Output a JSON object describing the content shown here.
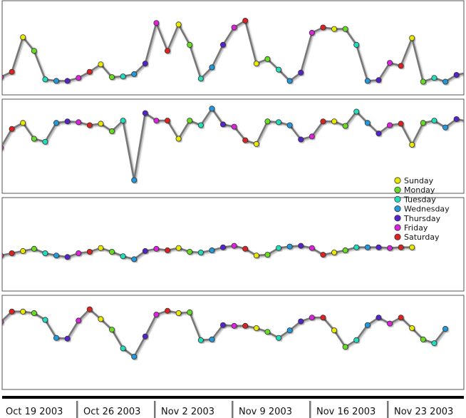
{
  "chart_data": {
    "type": "line",
    "x_tick_labels": [
      "Oct 19 2003",
      "Oct 26 2003",
      "Nov 2 2003",
      "Nov 9 2003",
      "Nov 16 2003",
      "Nov 23 2003"
    ],
    "legend": {
      "placement": "right, inside second panel",
      "entries": [
        {
          "label": "Sunday",
          "color": "#e8e800"
        },
        {
          "label": "Monday",
          "color": "#66dd22"
        },
        {
          "label": "Tuesday",
          "color": "#22ddbb"
        },
        {
          "label": "Wednesday",
          "color": "#2299dd"
        },
        {
          "label": "Thursday",
          "color": "#5522cc"
        },
        {
          "label": "Friday",
          "color": "#dd22dd"
        },
        {
          "label": "Saturday",
          "color": "#dd2222"
        }
      ]
    },
    "start_weekday": "Friday",
    "grid": false,
    "line_color": "#777777",
    "panels": [
      {
        "values": [
          16,
          23,
          69,
          51,
          13,
          11,
          11,
          15,
          23,
          33,
          16,
          17,
          20,
          34,
          88,
          51,
          86,
          59,
          14,
          29,
          59,
          82,
          91,
          34,
          40,
          26,
          11,
          22,
          75,
          82,
          80,
          80,
          59,
          11,
          12,
          35,
          31,
          68,
          10,
          15,
          10,
          19,
          22
        ]
      },
      {
        "values": [
          53,
          78,
          86,
          65,
          61,
          86,
          88,
          87,
          83,
          85,
          75,
          89,
          10,
          99,
          89,
          89,
          65,
          89,
          83,
          105,
          84,
          81,
          63,
          58,
          88,
          87,
          83,
          64,
          68,
          88,
          88,
          82,
          101,
          86,
          72,
          83,
          85,
          57,
          86,
          89,
          80,
          91,
          88
        ]
      },
      {
        "values": [
          40,
          43,
          46,
          49,
          43,
          40,
          38,
          43,
          45,
          50,
          45,
          39,
          35,
          46,
          49,
          47,
          50,
          45,
          44,
          47,
          51,
          53,
          49,
          40,
          41,
          50,
          52,
          53,
          50,
          41,
          44,
          47,
          51,
          51,
          51,
          50,
          51,
          51
        ]
      },
      {
        "values": [
          82,
          96,
          96,
          94,
          85,
          61,
          60,
          84,
          99,
          86,
          72,
          47,
          36,
          63,
          92,
          97,
          94,
          95,
          58,
          59,
          78,
          77,
          77,
          74,
          69,
          61,
          71,
          83,
          88,
          88,
          71,
          49,
          58,
          78,
          88,
          80,
          88,
          74,
          59,
          54,
          73
        ]
      }
    ]
  }
}
